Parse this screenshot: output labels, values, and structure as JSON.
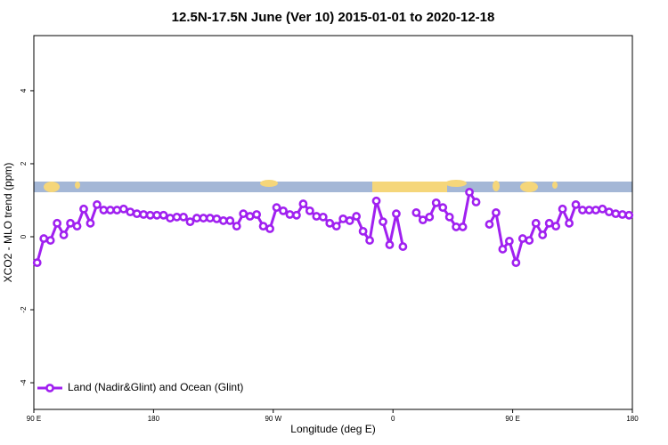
{
  "chart_data": {
    "type": "line",
    "title": "12.5N-17.5N June (Ver 10)   2015-01-01 to 2020-12-18",
    "x_label": "Longitude (deg E)",
    "y_label": "XCO2 - MLO trend (ppm)",
    "x": [
      92.5,
      97.5,
      102.5,
      107.5,
      112.5,
      117.5,
      122.5,
      127.5,
      132.5,
      137.5,
      142.5,
      147.5,
      152.5,
      157.5,
      162.5,
      167.5,
      172.5,
      177.5,
      182.5,
      187.5,
      192.5,
      197.5,
      202.5,
      207.5,
      212.5,
      217.5,
      222.5,
      227.5,
      232.5,
      237.5,
      242.5,
      247.5,
      252.5,
      257.5,
      262.5,
      267.5,
      272.5,
      277.5,
      282.5,
      287.5,
      292.5,
      297.5,
      302.5,
      307.5,
      312.5,
      317.5,
      322.5,
      327.5,
      332.5,
      337.5,
      342.5,
      347.5,
      352.5,
      357.5,
      362.5,
      367.5,
      372.5,
      377.5,
      382.5,
      387.5,
      392.5,
      397.5,
      402.5,
      407.5,
      412.5,
      417.5,
      422.5,
      427.5,
      432.5,
      437.5,
      442.5,
      447.5,
      452.5,
      457.5,
      462.5,
      467.5,
      472.5,
      477.5,
      482.5,
      487.5,
      492.5,
      497.5,
      502.5,
      507.5,
      512.5,
      517.5,
      522.5,
      527.5,
      532.5,
      537.5
    ],
    "series": [
      {
        "name": "Land (Nadir&Glint) and Ocean (Glint)",
        "color": "#a020f0",
        "values": [
          -0.71,
          -0.05,
          -0.1,
          0.37,
          0.05,
          0.37,
          0.29,
          0.76,
          0.37,
          0.88,
          0.73,
          0.73,
          0.73,
          0.76,
          0.68,
          0.63,
          0.61,
          0.59,
          0.59,
          0.59,
          0.51,
          0.54,
          0.54,
          0.41,
          0.51,
          0.51,
          0.51,
          0.49,
          0.44,
          0.44,
          0.29,
          0.63,
          0.56,
          0.61,
          0.29,
          0.22,
          0.8,
          0.71,
          0.61,
          0.59,
          0.9,
          0.71,
          0.56,
          0.54,
          0.37,
          0.29,
          0.49,
          0.44,
          0.56,
          0.15,
          -0.1,
          0.98,
          0.41,
          -0.22,
          0.63,
          -0.27,
          null,
          0.66,
          0.46,
          0.54,
          0.93,
          0.8,
          0.54,
          0.27,
          0.27,
          1.22,
          0.95,
          null,
          0.34,
          0.66,
          -0.34,
          -0.12,
          -0.71,
          -0.05,
          -0.1,
          0.37,
          0.05,
          0.37,
          0.29,
          0.76,
          0.37,
          0.88,
          0.73,
          0.73,
          0.73,
          0.76,
          0.68,
          0.63,
          0.61,
          0.59
        ]
      }
    ],
    "xlim": [
      90,
      540
    ],
    "xticks": [
      {
        "value": 90,
        "label": "90 E"
      },
      180,
      {
        "value": 270,
        "label": "90 W"
      },
      {
        "value": 360,
        "label": "0"
      },
      {
        "value": 450,
        "label": "90 E"
      },
      {
        "value": 540,
        "label": "180"
      }
    ],
    "ylim": [
      -4.73,
      5.51
    ],
    "yticks": [
      -4,
      -2,
      0,
      2,
      4
    ],
    "legend": "lower left"
  }
}
